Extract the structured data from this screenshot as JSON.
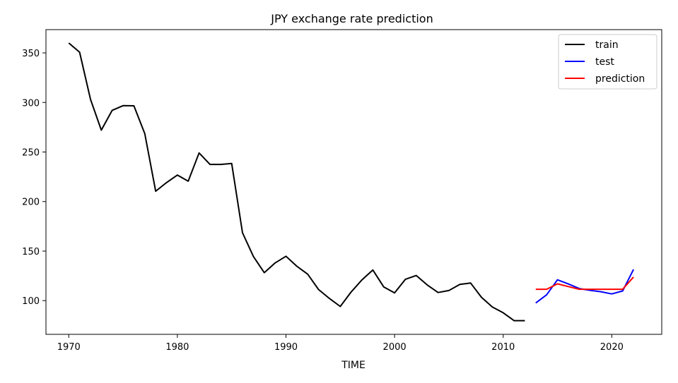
{
  "chart_data": {
    "type": "line",
    "title": "JPY exchange rate prediction",
    "xlabel": "TIME",
    "ylabel": "",
    "xlim": [
      1967.9,
      2024.6
    ],
    "ylim": [
      66,
      373.5
    ],
    "xticks": [
      1970,
      1980,
      1990,
      2000,
      2010,
      2020
    ],
    "yticks": [
      100,
      150,
      200,
      250,
      300,
      350
    ],
    "grid": false,
    "legend_position": "top-right",
    "series": [
      {
        "name": "train",
        "color": "#000000",
        "x": [
          1970,
          1971,
          1972,
          1973,
          1974,
          1975,
          1976,
          1977,
          1978,
          1979,
          1980,
          1981,
          1982,
          1983,
          1984,
          1985,
          1986,
          1987,
          1988,
          1989,
          1990,
          1991,
          1992,
          1993,
          1994,
          1995,
          1996,
          1997,
          1998,
          1999,
          2000,
          2001,
          2002,
          2003,
          2004,
          2005,
          2006,
          2007,
          2008,
          2009,
          2010,
          2011,
          2012
        ],
        "values": [
          360,
          350.7,
          303.2,
          272.1,
          292.1,
          296.8,
          296.6,
          268.5,
          210.4,
          219.1,
          226.7,
          220.5,
          249.1,
          237.5,
          237.5,
          238.5,
          168.5,
          144.6,
          128.2,
          138,
          144.8,
          134.7,
          126.7,
          111.2,
          102.2,
          94.1,
          108.8,
          121,
          130.9,
          113.9,
          107.8,
          121.6,
          125.4,
          115.9,
          108.2,
          110.2,
          116.3,
          117.8,
          103.4,
          93.6,
          87.8,
          79.8,
          79.8
        ]
      },
      {
        "name": "test",
        "color": "#0000ff",
        "x": [
          2013,
          2014,
          2015,
          2016,
          2017,
          2018,
          2019,
          2020,
          2021,
          2022
        ],
        "values": [
          97.6,
          105.9,
          121.0,
          116.8,
          112.2,
          110.4,
          109.0,
          106.8,
          109.8,
          131.5
        ]
      },
      {
        "name": "prediction",
        "color": "#ff0000",
        "x": [
          2013,
          2014,
          2015,
          2016,
          2017,
          2018,
          2019,
          2020,
          2021,
          2022
        ],
        "values": [
          111.5,
          111.5,
          117.0,
          114.2,
          111.5,
          111.5,
          111.5,
          111.5,
          111.5,
          123.8
        ]
      }
    ]
  }
}
